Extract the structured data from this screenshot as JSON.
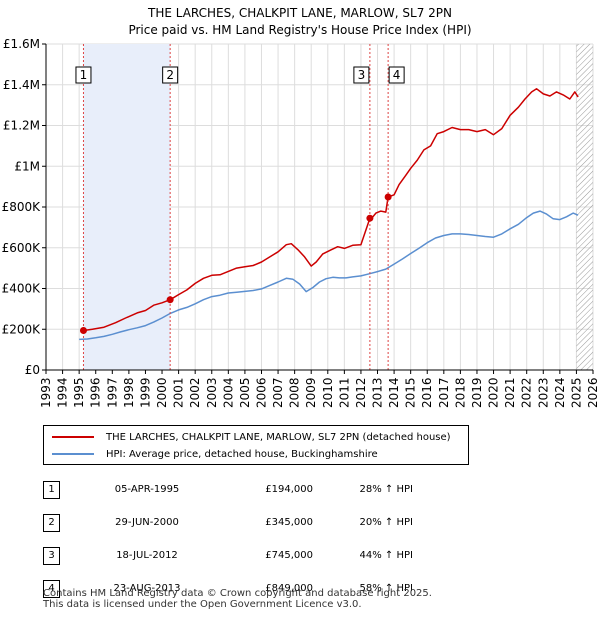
{
  "title_line1": "THE LARCHES, CHALKPIT LANE, MARLOW, SL7 2PN",
  "title_line2": "Price paid vs. HM Land Registry's House Price Index (HPI)",
  "chart_data": {
    "type": "line",
    "title": "THE LARCHES, CHALKPIT LANE, MARLOW, SL7 2PN — Price paid vs. HM Land Registry's House Price Index (HPI)",
    "xlim": [
      1993,
      2026
    ],
    "ylim": [
      0,
      1600000
    ],
    "x_ticks": [
      1993,
      1994,
      1995,
      1996,
      1997,
      1998,
      1999,
      2000,
      2001,
      2002,
      2003,
      2004,
      2005,
      2006,
      2007,
      2008,
      2009,
      2010,
      2011,
      2012,
      2013,
      2014,
      2015,
      2016,
      2017,
      2018,
      2019,
      2020,
      2021,
      2022,
      2023,
      2024,
      2025,
      2026
    ],
    "y_ticks": [
      {
        "value": 0,
        "label": "£0"
      },
      {
        "value": 200000,
        "label": "£200K"
      },
      {
        "value": 400000,
        "label": "£400K"
      },
      {
        "value": 600000,
        "label": "£600K"
      },
      {
        "value": 800000,
        "label": "£800K"
      },
      {
        "value": 1000000,
        "label": "£1M"
      },
      {
        "value": 1200000,
        "label": "£1.2M"
      },
      {
        "value": 1400000,
        "label": "£1.4M"
      },
      {
        "value": 1600000,
        "label": "£1.6M"
      }
    ],
    "shaded_region": [
      1995.26,
      2000.49
    ],
    "data_end_hatch_from": 2025.0,
    "series": [
      {
        "name": "THE LARCHES, CHALKPIT LANE, MARLOW, SL7 2PN (detached house)",
        "color": "#cc0000",
        "x": [
          1995.26,
          1995.8,
          1996.5,
          1997.2,
          1997.8,
          1998.5,
          1999.0,
          1999.5,
          2000.0,
          2000.49,
          2001.0,
          2001.5,
          2002.0,
          2002.5,
          2003.0,
          2003.5,
          2004.0,
          2004.5,
          2005.0,
          2005.5,
          2006.0,
          2006.5,
          2007.0,
          2007.5,
          2007.8,
          2008.2,
          2008.6,
          2009.0,
          2009.3,
          2009.7,
          2010.2,
          2010.6,
          2011.0,
          2011.5,
          2012.0,
          2012.54,
          2012.6,
          2012.9,
          2013.2,
          2013.5,
          2013.64,
          2014.0,
          2014.3,
          2014.7,
          2015.0,
          2015.4,
          2015.8,
          2016.2,
          2016.6,
          2017.0,
          2017.5,
          2018.0,
          2018.5,
          2019.0,
          2019.5,
          2020.0,
          2020.5,
          2021.0,
          2021.5,
          2021.9,
          2022.3,
          2022.6,
          2023.0,
          2023.4,
          2023.8,
          2024.2,
          2024.6,
          2024.9,
          2025.1
        ],
        "y": [
          194000,
          200000,
          210000,
          232000,
          255000,
          280000,
          292000,
          318000,
          330000,
          345000,
          370000,
          393000,
          425000,
          450000,
          465000,
          467000,
          484000,
          500000,
          507000,
          513000,
          530000,
          555000,
          580000,
          615000,
          620000,
          590000,
          555000,
          510000,
          530000,
          570000,
          590000,
          605000,
          597000,
          612000,
          615000,
          745000,
          740000,
          770000,
          780000,
          775000,
          849000,
          860000,
          910000,
          955000,
          990000,
          1030000,
          1080000,
          1100000,
          1160000,
          1170000,
          1190000,
          1180000,
          1180000,
          1170000,
          1180000,
          1155000,
          1185000,
          1250000,
          1290000,
          1330000,
          1365000,
          1380000,
          1355000,
          1345000,
          1365000,
          1350000,
          1330000,
          1365000,
          1340000
        ]
      },
      {
        "name": "HPI: Average price, detached house, Buckinghamshire",
        "color": "#5b8fd0",
        "x": [
          1995.0,
          1995.5,
          1996.0,
          1996.5,
          1997.0,
          1997.5,
          1998.0,
          1998.5,
          1999.0,
          1999.5,
          2000.0,
          2000.5,
          2001.0,
          2001.5,
          2002.0,
          2002.5,
          2003.0,
          2003.5,
          2004.0,
          2004.5,
          2005.0,
          2005.5,
          2006.0,
          2006.5,
          2007.0,
          2007.5,
          2007.9,
          2008.3,
          2008.7,
          2009.1,
          2009.5,
          2009.9,
          2010.3,
          2010.7,
          2011.1,
          2011.5,
          2012.0,
          2012.5,
          2013.0,
          2013.5,
          2014.0,
          2014.5,
          2015.0,
          2015.5,
          2016.0,
          2016.5,
          2017.0,
          2017.5,
          2018.0,
          2018.5,
          2019.0,
          2019.5,
          2020.0,
          2020.5,
          2021.0,
          2021.5,
          2022.0,
          2022.4,
          2022.8,
          2023.2,
          2023.6,
          2024.0,
          2024.4,
          2024.8,
          2025.1
        ],
        "y": [
          150000,
          152000,
          158000,
          165000,
          175000,
          187000,
          198000,
          207000,
          218000,
          235000,
          255000,
          278000,
          295000,
          307000,
          325000,
          345000,
          360000,
          367000,
          378000,
          382000,
          386000,
          390000,
          398000,
          415000,
          432000,
          450000,
          445000,
          422000,
          385000,
          405000,
          432000,
          448000,
          455000,
          452000,
          452000,
          457000,
          462000,
          472000,
          483000,
          495000,
          520000,
          545000,
          572000,
          598000,
          625000,
          648000,
          660000,
          668000,
          668000,
          665000,
          660000,
          655000,
          652000,
          668000,
          693000,
          715000,
          748000,
          770000,
          780000,
          765000,
          742000,
          738000,
          752000,
          770000,
          760000
        ]
      }
    ],
    "markers": [
      {
        "label": "1",
        "x": 1995.26,
        "y": 194000
      },
      {
        "label": "2",
        "x": 2000.49,
        "y": 345000
      },
      {
        "label": "3",
        "x": 2012.54,
        "y": 745000
      },
      {
        "label": "4",
        "x": 2013.64,
        "y": 849000
      }
    ]
  },
  "legend": {
    "series1": "THE LARCHES, CHALKPIT LANE, MARLOW, SL7 2PN (detached house)",
    "series2": "HPI: Average price, detached house, Buckinghamshire",
    "color1": "#cc0000",
    "color2": "#5b8fd0"
  },
  "transactions": [
    {
      "num": "1",
      "date": "05-APR-1995",
      "price": "£194,000",
      "hpi": "28% ↑ HPI"
    },
    {
      "num": "2",
      "date": "29-JUN-2000",
      "price": "£345,000",
      "hpi": "20% ↑ HPI"
    },
    {
      "num": "3",
      "date": "18-JUL-2012",
      "price": "£745,000",
      "hpi": "44% ↑ HPI"
    },
    {
      "num": "4",
      "date": "23-AUG-2013",
      "price": "£849,000",
      "hpi": "58% ↑ HPI"
    }
  ],
  "footer": {
    "line1": "Contains HM Land Registry data © Crown copyright and database right 2025.",
    "line2": "This data is licensed under the Open Government Licence v3.0."
  }
}
